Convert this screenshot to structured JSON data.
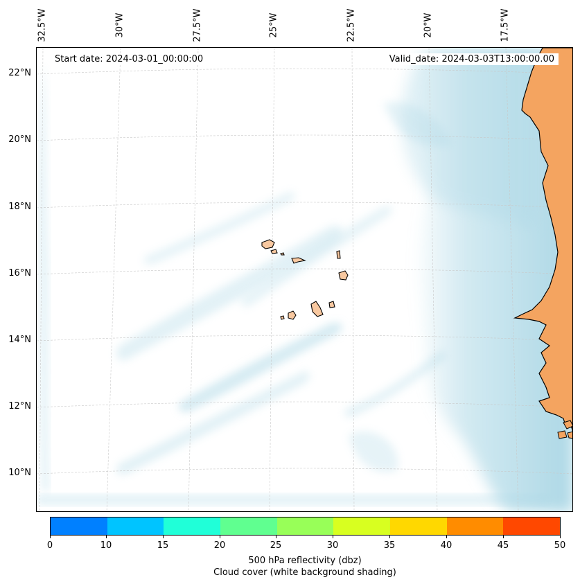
{
  "map": {
    "longitude_labels": [
      "32.5°W",
      "30°W",
      "27.5°W",
      "25°W",
      "22.5°W",
      "20°W",
      "17.5°W"
    ],
    "latitude_labels": [
      "22°N",
      "20°N",
      "18°N",
      "16°N",
      "14°N",
      "12°N",
      "10°N"
    ],
    "start_date": "Start date: 2024-03-01_00:00:00",
    "valid_date": "Valid_date: 2024-03-03T13:00:00.00",
    "land_color": "#f4a460",
    "island_color": "#f8c8a0",
    "cloud_color": "#add8e6",
    "gridline_color": "#c8c8c8"
  },
  "colorbar": {
    "colors": [
      "#0080ff",
      "#00c4ff",
      "#20ffd8",
      "#60ff90",
      "#98ff58",
      "#d8ff20",
      "#ffd800",
      "#ff8c00",
      "#ff4800"
    ],
    "tick_labels": [
      "0",
      "10",
      "15",
      "20",
      "25",
      "30",
      "35",
      "40",
      "45",
      "50"
    ],
    "title_line1": "500 hPa reflectivity (dbz)",
    "title_line2": "Cloud cover (white background shading)"
  }
}
